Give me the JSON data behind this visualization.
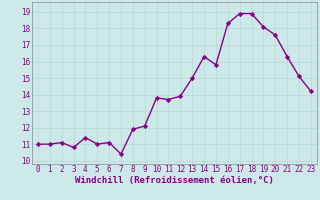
{
  "x": [
    0,
    1,
    2,
    3,
    4,
    5,
    6,
    7,
    8,
    9,
    10,
    11,
    12,
    13,
    14,
    15,
    16,
    17,
    18,
    19,
    20,
    21,
    22,
    23
  ],
  "y": [
    11.0,
    11.0,
    11.1,
    10.8,
    11.4,
    11.0,
    11.1,
    10.4,
    11.9,
    12.1,
    13.8,
    13.7,
    13.9,
    15.0,
    16.3,
    15.8,
    18.3,
    18.9,
    18.9,
    18.1,
    17.6,
    16.3,
    15.1,
    14.2
  ],
  "line_color": "#880088",
  "marker": "D",
  "marker_size": 2.2,
  "linewidth": 1.0,
  "xlabel": "Windchill (Refroidissement éolien,°C)",
  "xlabel_fontsize": 6.5,
  "xlim": [
    -0.5,
    23.5
  ],
  "ylim": [
    9.8,
    19.6
  ],
  "yticks": [
    10,
    11,
    12,
    13,
    14,
    15,
    16,
    17,
    18,
    19
  ],
  "xticks": [
    0,
    1,
    2,
    3,
    4,
    5,
    6,
    7,
    8,
    9,
    10,
    11,
    12,
    13,
    14,
    15,
    16,
    17,
    18,
    19,
    20,
    21,
    22,
    23
  ],
  "xtick_labels": [
    "0",
    "1",
    "2",
    "3",
    "4",
    "5",
    "6",
    "7",
    "8",
    "9",
    "10",
    "11",
    "12",
    "13",
    "14",
    "15",
    "16",
    "17",
    "18",
    "19",
    "20",
    "21",
    "22",
    "23"
  ],
  "grid_color": "#b8d8d8",
  "grid_linewidth": 0.5,
  "bg_color": "#cce8e8",
  "tick_fontsize": 5.5,
  "xlabel_bold": true,
  "spine_color": "#888888"
}
